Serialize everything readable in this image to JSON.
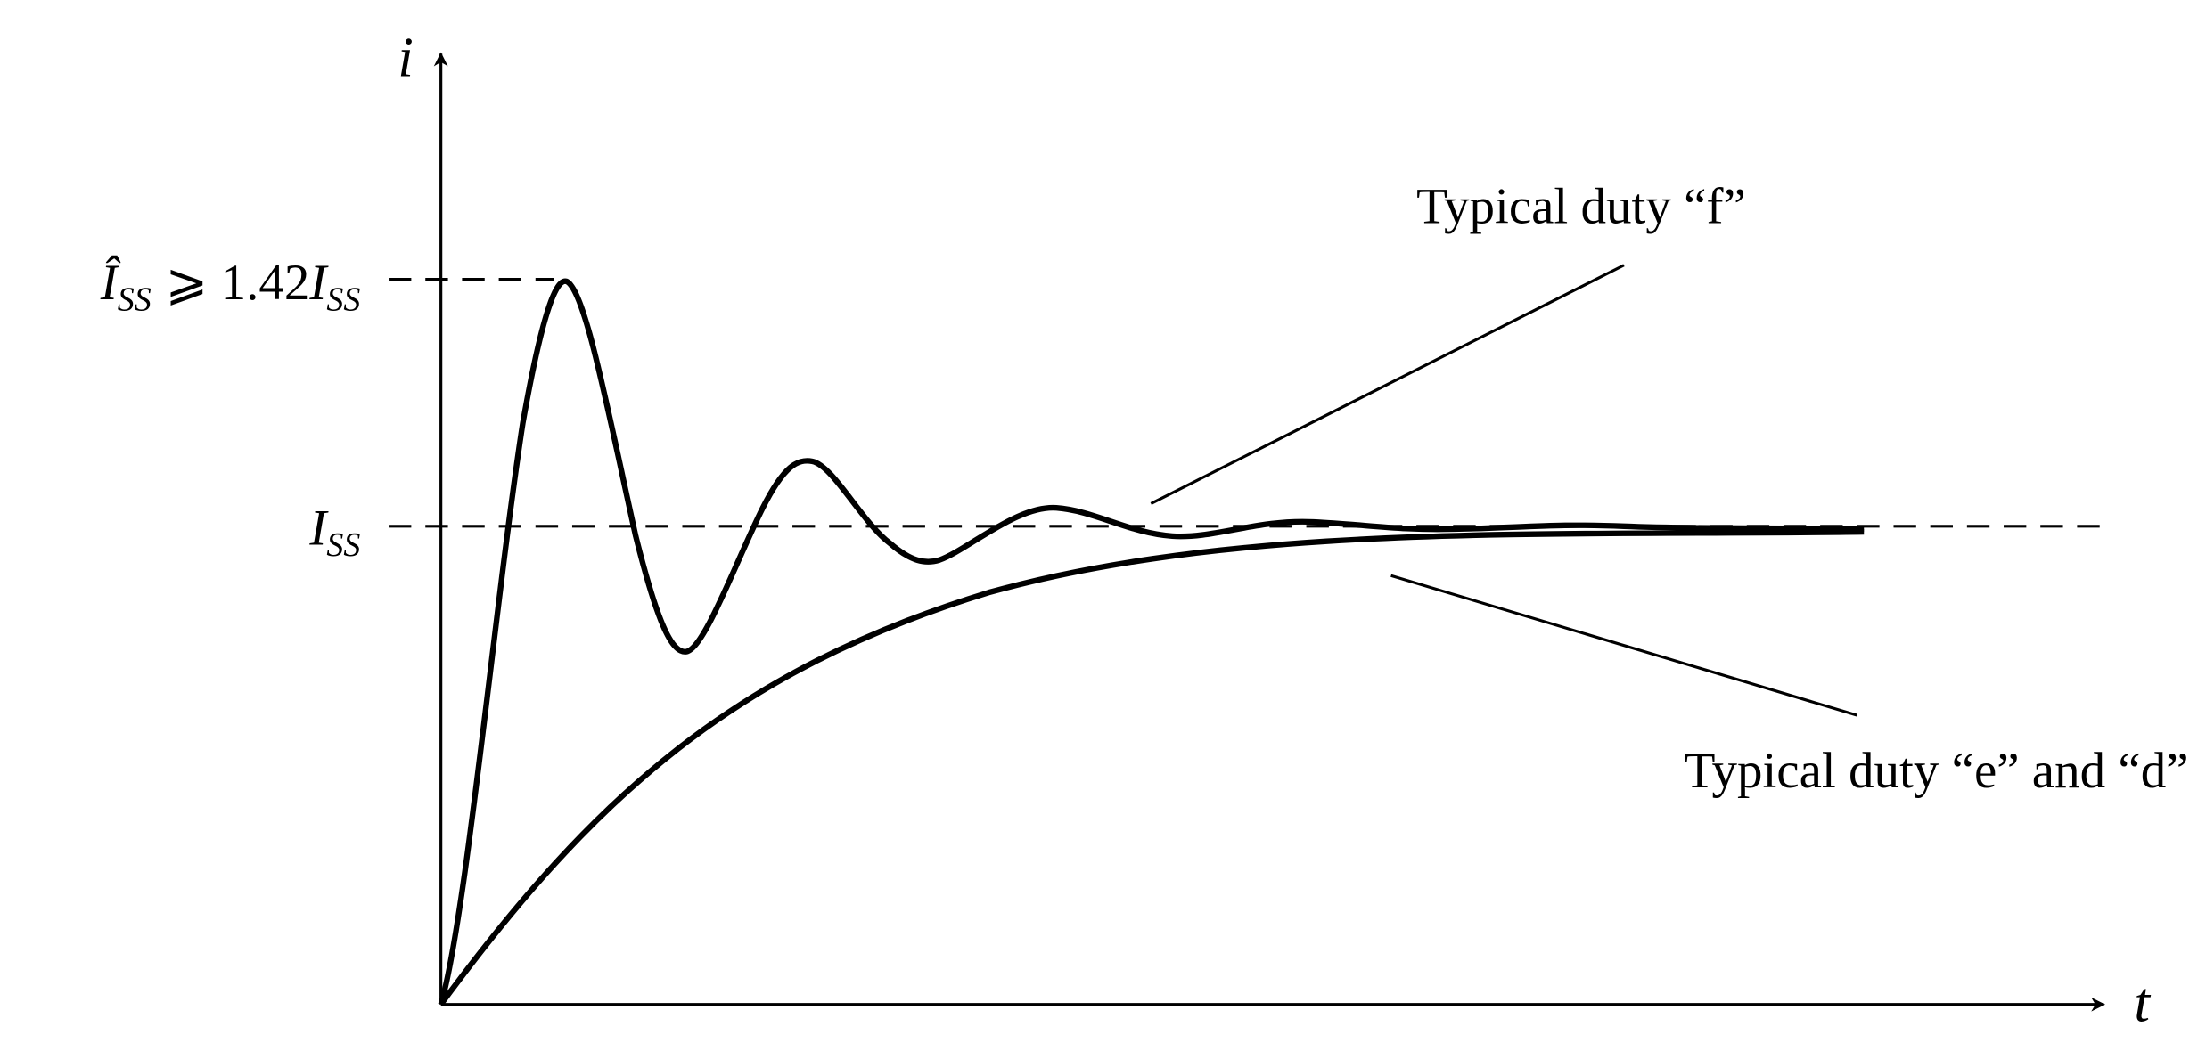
{
  "axes": {
    "y_label": "i",
    "x_label": "t"
  },
  "levels": {
    "peak": {
      "symbol": "Î",
      "symbol_sub": "SS",
      "relation": "⩾ 1.42",
      "ref": "I",
      "ref_sub": "SS"
    },
    "steady": {
      "symbol": "I",
      "symbol_sub": "SS"
    }
  },
  "curves": {
    "oscillating": "Typical duty “f”",
    "exponential": "Typical duty “e” and “d”"
  }
}
